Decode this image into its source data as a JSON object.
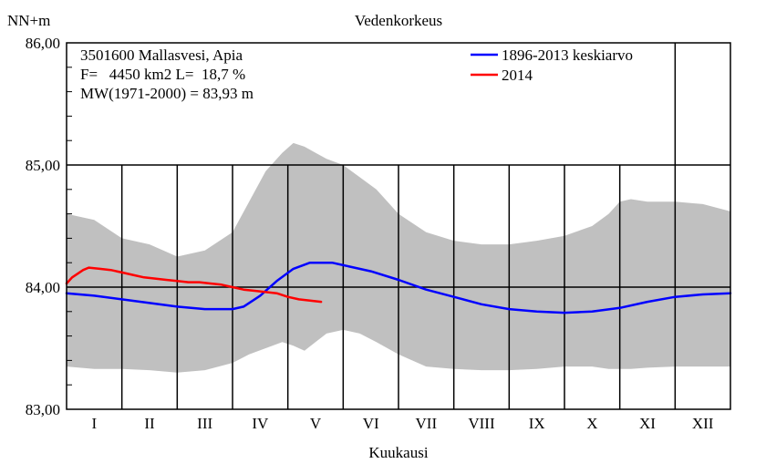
{
  "chart_data": {
    "type": "line",
    "title": "Vedenkorkeus",
    "ylabel": "NN+m",
    "xlabel": "Kuukausi",
    "ylim": [
      83.0,
      86.0
    ],
    "yticks": [
      {
        "value": 83.0,
        "label": "83,00"
      },
      {
        "value": 84.0,
        "label": "84,00"
      },
      {
        "value": 85.0,
        "label": "85,00"
      },
      {
        "value": 86.0,
        "label": "86,00"
      }
    ],
    "months": [
      "I",
      "II",
      "III",
      "IV",
      "V",
      "VI",
      "VII",
      "VIII",
      "IX",
      "X",
      "XI",
      "XII"
    ],
    "grid": true,
    "info": [
      "3501600 Mallasvesi, Apia",
      "F=   4450 km2 L=  18,7 %",
      "MW(1971-2000) = 83,93 m"
    ],
    "legend_position": "top-right",
    "band": {
      "color": "#c0c0c0",
      "x": [
        0,
        0.5,
        1,
        1.5,
        2,
        2.5,
        3,
        3.3,
        3.6,
        3.9,
        4.1,
        4.3,
        4.5,
        4.7,
        5.0,
        5.3,
        5.6,
        6.0,
        6.5,
        7.0,
        7.5,
        8.0,
        8.5,
        9.0,
        9.5,
        9.8,
        10.0,
        10.2,
        10.5,
        11.0,
        11.5,
        12.0
      ],
      "upper": [
        84.6,
        84.55,
        84.4,
        84.35,
        84.25,
        84.3,
        84.45,
        84.7,
        84.95,
        85.1,
        85.18,
        85.15,
        85.1,
        85.05,
        85.0,
        84.9,
        84.8,
        84.6,
        84.45,
        84.38,
        84.35,
        84.35,
        84.38,
        84.42,
        84.5,
        84.6,
        84.7,
        84.72,
        84.7,
        84.7,
        84.68,
        84.62
      ],
      "lower": [
        83.35,
        83.33,
        83.33,
        83.32,
        83.3,
        83.32,
        83.38,
        83.45,
        83.5,
        83.55,
        83.52,
        83.48,
        83.55,
        83.62,
        83.65,
        83.62,
        83.55,
        83.45,
        83.35,
        83.33,
        83.32,
        83.32,
        83.33,
        83.35,
        83.35,
        83.33,
        83.33,
        83.33,
        83.34,
        83.35,
        83.35,
        83.35
      ]
    },
    "series": [
      {
        "name": "1896-2013 keskiarvo",
        "color": "#0000ff",
        "x": [
          0,
          0.5,
          1,
          1.5,
          2,
          2.5,
          3,
          3.2,
          3.5,
          3.8,
          4.1,
          4.4,
          4.8,
          5.0,
          5.5,
          6.0,
          6.5,
          7.0,
          7.5,
          8.0,
          8.5,
          9.0,
          9.5,
          10.0,
          10.5,
          11.0,
          11.5,
          12.0
        ],
        "y": [
          83.95,
          83.93,
          83.9,
          83.87,
          83.84,
          83.82,
          83.82,
          83.84,
          83.93,
          84.05,
          84.15,
          84.2,
          84.2,
          84.18,
          84.13,
          84.06,
          83.98,
          83.92,
          83.86,
          83.82,
          83.8,
          83.79,
          83.8,
          83.83,
          83.88,
          83.92,
          83.94,
          83.95
        ]
      },
      {
        "name": "2014",
        "color": "#ff0000",
        "x": [
          0,
          0.1,
          0.2,
          0.3,
          0.4,
          0.6,
          0.8,
          1.0,
          1.2,
          1.4,
          1.6,
          1.8,
          2.0,
          2.2,
          2.4,
          2.6,
          2.8,
          3.0,
          3.2,
          3.4,
          3.6,
          3.8,
          4.0,
          4.2,
          4.4,
          4.6
        ],
        "y": [
          84.03,
          84.08,
          84.11,
          84.14,
          84.16,
          84.15,
          84.14,
          84.12,
          84.1,
          84.08,
          84.07,
          84.06,
          84.05,
          84.04,
          84.04,
          84.03,
          84.02,
          84.0,
          83.98,
          83.97,
          83.96,
          83.95,
          83.92,
          83.9,
          83.89,
          83.88
        ]
      }
    ]
  }
}
